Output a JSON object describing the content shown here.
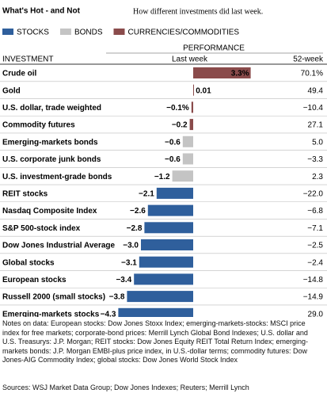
{
  "chart_data": {
    "type": "bar",
    "orientation": "horizontal",
    "title": "What's Hot - and Not",
    "subtitle": "How different investments did last week.",
    "legend": [
      {
        "name": "STOCKS",
        "color": "#2f5f9c"
      },
      {
        "name": "BONDS",
        "color": "#c4c4c4"
      },
      {
        "name": "CURRENCIES/COMMODITIES",
        "color": "#8a4b4b"
      }
    ],
    "header": {
      "group": "PERFORMANCE",
      "category": "INVESTMENT",
      "value": "Last week",
      "extra": "52-week"
    },
    "categories": [
      "Crude oil",
      "Gold",
      "U.S. dollar, trade weighted",
      "Commodity futures",
      "Emerging-markets bonds",
      "U.S. corporate junk bonds",
      "U.S. investment-grade bonds",
      "REIT stocks",
      "Nasdaq Composite Index",
      "S&P 500-stock index",
      "Dow Jones Industrial Average",
      "Global stocks",
      "European stocks",
      "Russell 2000 (small stocks)",
      "Emerging-markets stocks"
    ],
    "values": [
      3.3,
      0.01,
      -0.1,
      -0.2,
      -0.6,
      -0.6,
      -1.2,
      -2.1,
      -2.6,
      -2.8,
      -3.0,
      -3.1,
      -3.4,
      -3.8,
      -4.3
    ],
    "value_labels": [
      "3.3%",
      "0.01",
      "−0.1%",
      "−0.2",
      "−0.6",
      "−0.6",
      "−1.2",
      "−2.1",
      "−2.6",
      "−2.8",
      "−3.0",
      "−3.1",
      "−3.4",
      "−3.8",
      "−4.3"
    ],
    "colors": [
      "#8a4b4b",
      "#8a4b4b",
      "#8a4b4b",
      "#8a4b4b",
      "#c4c4c4",
      "#c4c4c4",
      "#c4c4c4",
      "#2f5f9c",
      "#2f5f9c",
      "#2f5f9c",
      "#2f5f9c",
      "#2f5f9c",
      "#2f5f9c",
      "#2f5f9c",
      "#2f5f9c"
    ],
    "week52": [
      "70.1%",
      "49.4",
      "−10.4",
      "27.1",
      "5.0",
      "−3.3",
      "2.3",
      "−22.0",
      "−6.8",
      "−7.1",
      "−2.5",
      "−2.4",
      "−14.8",
      "−14.9",
      "29.0"
    ],
    "xlim": [
      -5,
      4
    ],
    "notes": "Notes on data: European stocks: Dow Jones Stoxx Index; emerging-markets-stocks: MSCI price index for free markets; corporate-bond prices: Merrill Lynch Global Bond Indexes; U.S. dollar and U.S. Treasurys: J.P. Morgan; REIT stocks: Dow Jones Equity REIT Total Return Index; emerging-markets bonds: J.P. Morgan EMBI-plus price index, in U.S.-dollar terms; commodity futures: Dow Jones-AIG Commodity Index; global stocks: Dow Jones World Stock Index",
    "sources": "Sources: WSJ Market Data Group; Dow Jones Indexes; Reuters; Merrill Lynch"
  }
}
